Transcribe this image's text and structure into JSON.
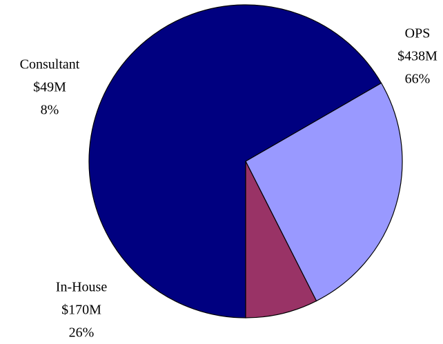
{
  "chart_data": {
    "type": "pie",
    "categories": [
      "OPS",
      "In-House",
      "Consultant"
    ],
    "values": [
      438,
      170,
      49
    ],
    "value_labels": [
      "$438M",
      "$170M",
      "$49M"
    ],
    "percents": [
      66,
      26,
      8
    ],
    "percent_labels": [
      "66%",
      "26%",
      "8%"
    ],
    "colors": [
      "#000080",
      "#9999ff",
      "#993366"
    ]
  }
}
